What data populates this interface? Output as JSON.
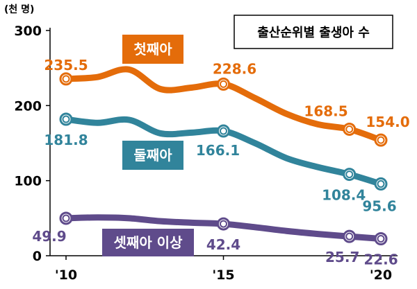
{
  "chart_data": {
    "type": "line",
    "title": "출산순위별 출생아 수",
    "unit_label": "(천 명)",
    "ylim": [
      0,
      300
    ],
    "y_ticks": [
      0,
      100,
      200,
      300
    ],
    "x_ticks": [
      {
        "x": 2010,
        "label": "'10"
      },
      {
        "x": 2015,
        "label": "'15"
      },
      {
        "x": 2020,
        "label": "'20"
      }
    ],
    "series": [
      {
        "name": "첫째아",
        "color": "#e46c0a",
        "x": [
          2010,
          2011,
          2012,
          2013,
          2014,
          2015,
          2016,
          2017,
          2018,
          2019,
          2020
        ],
        "values": [
          235.5,
          238,
          248,
          222,
          224,
          228.6,
          210,
          189,
          175,
          168.5,
          154.0
        ],
        "markers": [
          {
            "x": 2010,
            "y": 235.5,
            "label": "235.5"
          },
          {
            "x": 2015,
            "y": 228.6,
            "label": "228.6"
          },
          {
            "x": 2019,
            "y": 168.5,
            "label": "168.5"
          },
          {
            "x": 2020,
            "y": 154.0,
            "label": "154.0"
          }
        ]
      },
      {
        "name": "둘째아",
        "color": "#31849b",
        "x": [
          2010,
          2011,
          2012,
          2013,
          2014,
          2015,
          2016,
          2017,
          2018,
          2019,
          2020
        ],
        "values": [
          181.8,
          177,
          181,
          163,
          164,
          166.1,
          150,
          130,
          118,
          108.4,
          95.6
        ],
        "markers": [
          {
            "x": 2010,
            "y": 181.8,
            "label": "181.8"
          },
          {
            "x": 2015,
            "y": 166.1,
            "label": "166.1"
          },
          {
            "x": 2019,
            "y": 108.4,
            "label": "108.4"
          },
          {
            "x": 2020,
            "y": 95.6,
            "label": "95.6"
          }
        ]
      },
      {
        "name": "셋째아 이상",
        "color": "#5f4b8b",
        "x": [
          2010,
          2011,
          2012,
          2013,
          2014,
          2015,
          2016,
          2017,
          2018,
          2019,
          2020
        ],
        "values": [
          49.9,
          51,
          50,
          46,
          44,
          42.4,
          38,
          33,
          29,
          25.7,
          22.6
        ],
        "markers": [
          {
            "x": 2010,
            "y": 49.9,
            "label": "49.9"
          },
          {
            "x": 2015,
            "y": 42.4,
            "label": "42.4"
          },
          {
            "x": 2019,
            "y": 25.7,
            "label": "25.7"
          },
          {
            "x": 2020,
            "y": 22.6,
            "label": "22.6"
          }
        ]
      }
    ]
  }
}
